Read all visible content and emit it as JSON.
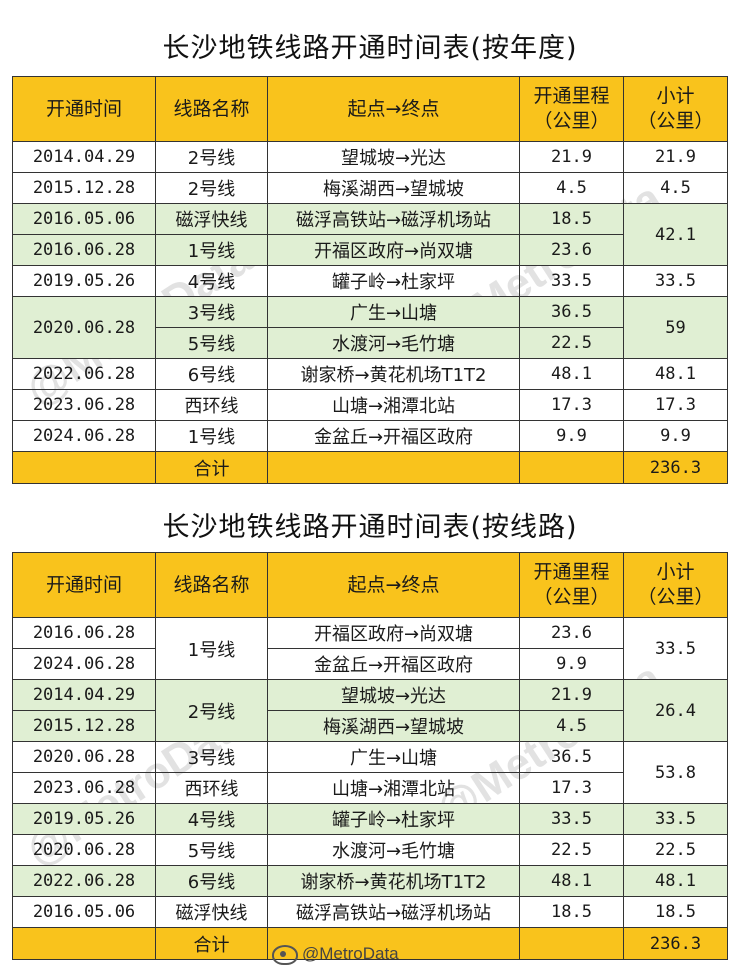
{
  "watermark": "@MetroData",
  "footer_watermark": "@MetroData",
  "headers": {
    "date": "开通时间",
    "line": "线路名称",
    "route": "起点→终点",
    "mileage_line1": "开通里程",
    "mileage_line2": "（公里）",
    "subtotal_line1": "小计",
    "subtotal_line2": "（公里）"
  },
  "table1": {
    "title": "长沙地铁线路开通时间表(按年度)",
    "rows": [
      {
        "date": "2014.04.29",
        "line": "2号线",
        "route": "望城坡→光达",
        "mileage": "21.9",
        "subtotal": "21.9"
      },
      {
        "date": "2015.12.28",
        "line": "2号线",
        "route": "梅溪湖西→望城坡",
        "mileage": "4.5",
        "subtotal": "4.5"
      },
      {
        "date": "2016.05.06",
        "line": "磁浮快线",
        "route": "磁浮高铁站→磁浮机场站",
        "mileage": "18.5",
        "subtotal": "42.1"
      },
      {
        "date": "2016.06.28",
        "line": "1号线",
        "route": "开福区政府→尚双塘",
        "mileage": "23.6"
      },
      {
        "date": "2019.05.26",
        "line": "4号线",
        "route": "罐子岭→杜家坪",
        "mileage": "33.5",
        "subtotal": "33.5"
      },
      {
        "date": "2020.06.28",
        "line": "3号线",
        "route": "广生→山塘",
        "mileage": "36.5",
        "subtotal": "59"
      },
      {
        "line": "5号线",
        "route": "水渡河→毛竹塘",
        "mileage": "22.5"
      },
      {
        "date": "2022.06.28",
        "line": "6号线",
        "route": "谢家桥→黄花机场T1T2",
        "mileage": "48.1",
        "subtotal": "48.1"
      },
      {
        "date": "2023.06.28",
        "line": "西环线",
        "route": "山塘→湘潭北站",
        "mileage": "17.3",
        "subtotal": "17.3"
      },
      {
        "date": "2024.06.28",
        "line": "1号线",
        "route": "金盆丘→开福区政府",
        "mileage": "9.9",
        "subtotal": "9.9"
      }
    ],
    "total_label": "合计",
    "total_value": "236.3"
  },
  "table2": {
    "title": "长沙地铁线路开通时间表(按线路)",
    "rows": [
      {
        "date": "2016.06.28",
        "line": "1号线",
        "route": "开福区政府→尚双塘",
        "mileage": "23.6",
        "subtotal": "33.5"
      },
      {
        "date": "2024.06.28",
        "route": "金盆丘→开福区政府",
        "mileage": "9.9"
      },
      {
        "date": "2014.04.29",
        "line": "2号线",
        "route": "望城坡→光达",
        "mileage": "21.9",
        "subtotal": "26.4"
      },
      {
        "date": "2015.12.28",
        "route": "梅溪湖西→望城坡",
        "mileage": "4.5"
      },
      {
        "date": "2020.06.28",
        "line": "3号线",
        "route": "广生→山塘",
        "mileage": "36.5",
        "subtotal": "53.8"
      },
      {
        "date": "2023.06.28",
        "line": "西环线",
        "route": "山塘→湘潭北站",
        "mileage": "17.3"
      },
      {
        "date": "2019.05.26",
        "line": "4号线",
        "route": "罐子岭→杜家坪",
        "mileage": "33.5",
        "subtotal": "33.5"
      },
      {
        "date": "2020.06.28",
        "line": "5号线",
        "route": "水渡河→毛竹塘",
        "mileage": "22.5",
        "subtotal": "22.5"
      },
      {
        "date": "2022.06.28",
        "line": "6号线",
        "route": "谢家桥→黄花机场T1T2",
        "mileage": "48.1",
        "subtotal": "48.1"
      },
      {
        "date": "2016.05.06",
        "line": "磁浮快线",
        "route": "磁浮高铁站→磁浮机场站",
        "mileage": "18.5",
        "subtotal": "18.5"
      }
    ],
    "total_label": "合计",
    "total_value": "236.3"
  },
  "colors": {
    "header_bg": "#f9c31c",
    "green_row_bg": "#e0efd3",
    "border": "#333333"
  },
  "icons": {
    "footer": "weibo-icon"
  }
}
